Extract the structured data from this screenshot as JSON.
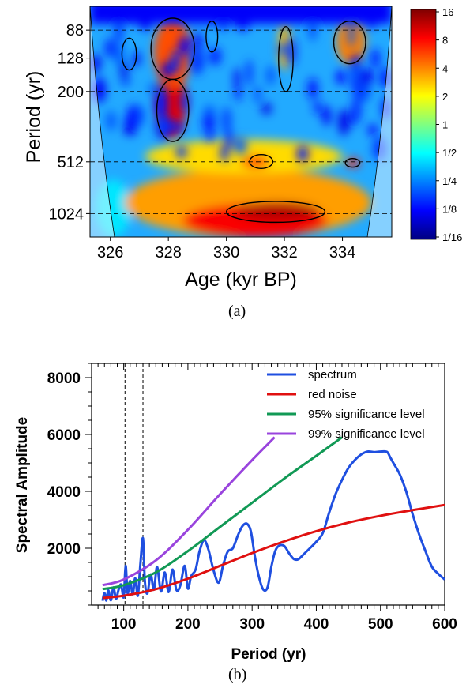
{
  "captions": {
    "a": "(a)",
    "b": "(b)"
  },
  "chart_data": [
    {
      "type": "heatmap",
      "panel": "(a)",
      "xlabel": "Age (kyr BP)",
      "ylabel": "Period (yr)",
      "xlim": [
        325.3,
        335.7
      ],
      "x_ticks": [
        326,
        328,
        330,
        332,
        334
      ],
      "ylim": [
        64,
        1400
      ],
      "y_scale": "log2",
      "y_ticks": [
        88,
        128,
        200,
        512,
        1024
      ],
      "dashed_period_lines": [
        88,
        128,
        200,
        512,
        1024
      ],
      "colorbar": {
        "scale": "log2",
        "labels": [
          "16",
          "8",
          "4",
          "2",
          "1",
          "1/2",
          "1/4",
          "1/8",
          "1/16"
        ],
        "colors": [
          "#000080",
          "#0000ff",
          "#0080ff",
          "#00ffff",
          "#80ff80",
          "#ffff00",
          "#ff8000",
          "#ff0000",
          "#800000"
        ]
      },
      "power_regions": [
        {
          "age": [
            325.5,
            326.7
          ],
          "period": [
            650,
            1400
          ],
          "level": 0.35
        },
        {
          "age": [
            326.5,
            335
          ],
          "period": [
            560,
            1400
          ],
          "level": 0.72
        },
        {
          "age": [
            327.2,
            334
          ],
          "period": [
            380,
            600
          ],
          "level": 0.66
        },
        {
          "age": [
            328.5,
            333.5
          ],
          "period": [
            900,
            1400
          ],
          "level": 0.88
        },
        {
          "age": [
            330.3,
            333.2
          ],
          "period": [
            880,
            1130
          ],
          "level": 0.95
        },
        {
          "age": [
            327.6,
            328.6
          ],
          "period": [
            140,
            380
          ],
          "level": 0.9
        },
        {
          "age": [
            327.5,
            328.8
          ],
          "period": [
            75,
            190
          ],
          "level": 0.8
        },
        {
          "age": [
            333.8,
            334.8
          ],
          "period": [
            75,
            140
          ],
          "level": 0.75
        },
        {
          "age": [
            330.5,
            331.5
          ],
          "period": [
            470,
            560
          ],
          "level": 0.8
        },
        {
          "age": [
            334.1,
            334.6
          ],
          "period": [
            490,
            550
          ],
          "level": 0.85
        },
        {
          "age": [
            331.8,
            332.2
          ],
          "period": [
            80,
            150
          ],
          "level": 0.7
        }
      ],
      "significance_contours": [
        {
          "age": [
            327.6,
            328.7
          ],
          "period": [
            170,
            390
          ]
        },
        {
          "age": [
            327.4,
            328.9
          ],
          "period": [
            75,
            170
          ]
        },
        {
          "age": [
            326.4,
            326.9
          ],
          "period": [
            98,
            150
          ]
        },
        {
          "age": [
            329.3,
            329.7
          ],
          "period": [
            78,
            118
          ]
        },
        {
          "age": [
            331.8,
            332.3
          ],
          "period": [
            84,
            200
          ]
        },
        {
          "age": [
            333.7,
            334.8
          ],
          "period": [
            78,
            138
          ]
        },
        {
          "age": [
            330.8,
            331.6
          ],
          "period": [
            465,
            560
          ]
        },
        {
          "age": [
            334.1,
            334.6
          ],
          "period": [
            490,
            550
          ]
        },
        {
          "age": [
            330.0,
            333.4
          ],
          "period": [
            870,
            1150
          ]
        }
      ]
    },
    {
      "type": "line",
      "panel": "(b)",
      "xlabel": "Period (yr)",
      "ylabel": "Spectral Amplitude",
      "xlim": [
        50,
        600
      ],
      "ylim": [
        0,
        8500
      ],
      "x_ticks": [
        100,
        200,
        300,
        400,
        500,
        600
      ],
      "y_ticks": [
        2000,
        4000,
        6000,
        8000
      ],
      "vlines": [
        102,
        130
      ],
      "legend_position": "top-right",
      "series": [
        {
          "name": "spectrum",
          "color": "#1f4fe0",
          "x": [
            67,
            70,
            73,
            76,
            80,
            84,
            88,
            92,
            96,
            100,
            103,
            106,
            110,
            114,
            118,
            122,
            126,
            130,
            133,
            137,
            142,
            147,
            152,
            158,
            164,
            170,
            176,
            182,
            188,
            195,
            200,
            205,
            212,
            218,
            225,
            232,
            240,
            248,
            255,
            262,
            270,
            278,
            285,
            292,
            298,
            304,
            310,
            317,
            324,
            330,
            336,
            342,
            350,
            358,
            365,
            372,
            380,
            390,
            400,
            410,
            420,
            430,
            440,
            450,
            460,
            470,
            480,
            490,
            500,
            510,
            515,
            520,
            530,
            540,
            550,
            560,
            570,
            580,
            590,
            600
          ],
          "values": [
            150,
            420,
            160,
            520,
            170,
            620,
            220,
            540,
            720,
            280,
            1380,
            420,
            850,
            380,
            950,
            330,
            1450,
            2350,
            820,
            410,
            1080,
            540,
            1350,
            480,
            1150,
            460,
            1250,
            540,
            680,
            1380,
            580,
            1020,
            1250,
            1880,
            2280,
            1950,
            1220,
            790,
            1420,
            1880,
            2000,
            2460,
            2780,
            2860,
            2600,
            1750,
            1050,
            560,
            620,
            1350,
            1900,
            2090,
            2080,
            1810,
            1620,
            1610,
            1780,
            2000,
            2230,
            2530,
            3250,
            3900,
            4400,
            4820,
            5100,
            5300,
            5400,
            5380,
            5400,
            5390,
            5200,
            5000,
            4600,
            4000,
            3200,
            2500,
            1900,
            1350,
            1100,
            900
          ]
        },
        {
          "name": "red noise",
          "color": "#e01010",
          "x": [
            67,
            100,
            150,
            200,
            250,
            300,
            350,
            400,
            450,
            500,
            550,
            600
          ],
          "values": [
            250,
            330,
            560,
            930,
            1380,
            1830,
            2240,
            2600,
            2900,
            3140,
            3340,
            3520
          ]
        },
        {
          "name": "95% significance level",
          "color": "#119955",
          "x": [
            67,
            100,
            150,
            200,
            250,
            300,
            350,
            400,
            440
          ],
          "values": [
            560,
            700,
            1150,
            1900,
            2750,
            3600,
            4450,
            5250,
            5900
          ]
        },
        {
          "name": "99% significance level",
          "color": "#9944dd",
          "x": [
            67,
            100,
            150,
            200,
            250,
            300,
            335
          ],
          "values": [
            700,
            900,
            1570,
            2650,
            3900,
            5100,
            5900
          ]
        }
      ]
    }
  ]
}
